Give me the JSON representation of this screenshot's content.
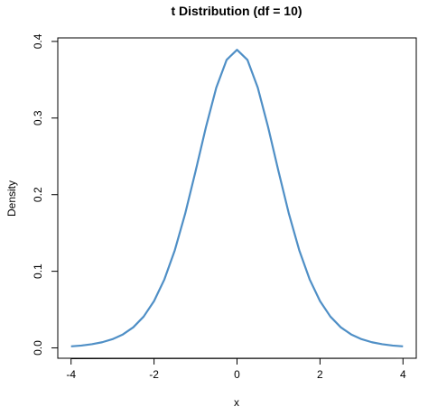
{
  "chart_data": {
    "type": "line",
    "title": "t Distribution (df = 10)",
    "x_label": "x",
    "y_label": "Density",
    "x": [
      -4,
      -3.75,
      -3.5,
      -3.25,
      -3,
      -2.75,
      -2.5,
      -2.25,
      -2,
      -1.75,
      -1.5,
      -1.25,
      -1,
      -0.75,
      -0.5,
      -0.25,
      0,
      0.25,
      0.5,
      0.75,
      1,
      1.25,
      1.5,
      1.75,
      2,
      2.25,
      2.5,
      2.75,
      3,
      3.25,
      3.5,
      3.75,
      4
    ],
    "series": [
      {
        "name": "density",
        "color": "#4f8fc6",
        "values": [
          0.002,
          0.0031,
          0.0048,
          0.0074,
          0.0114,
          0.0176,
          0.0269,
          0.0409,
          0.0611,
          0.0895,
          0.1274,
          0.1751,
          0.2304,
          0.288,
          0.3397,
          0.376,
          0.3891,
          0.376,
          0.3397,
          0.288,
          0.2304,
          0.1751,
          0.1274,
          0.0895,
          0.0611,
          0.0409,
          0.0269,
          0.0176,
          0.0114,
          0.0074,
          0.0048,
          0.0031,
          0.002
        ]
      }
    ],
    "xlim": [
      -4.32,
      4.32
    ],
    "ylim": [
      -0.0135,
      0.4046
    ],
    "xticks": [
      -4,
      -2,
      0,
      2,
      4
    ],
    "yticks": [
      {
        "value": 0,
        "label": "0.0"
      },
      0.1,
      0.2,
      0.3,
      0.4
    ]
  }
}
